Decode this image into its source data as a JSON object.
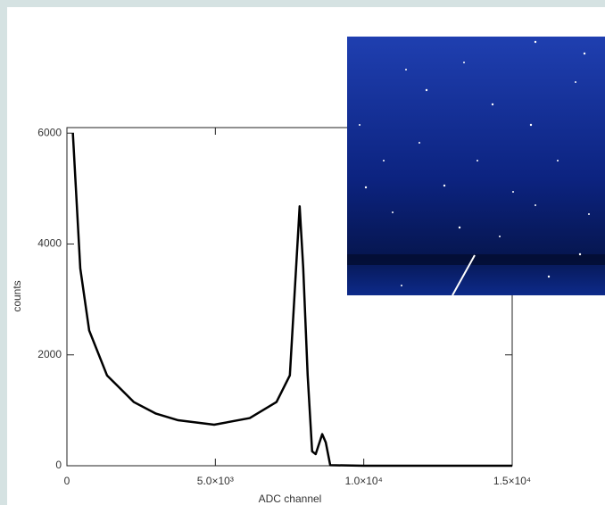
{
  "chart_data": {
    "type": "line",
    "x_label": "ADC channel",
    "y_label": "counts",
    "x": [
      200,
      450,
      750,
      1350,
      2250,
      3000,
      3750,
      4960,
      6160,
      7060,
      7510,
      7720,
      7840,
      7960,
      8110,
      8260,
      8380,
      8600,
      8720,
      8870,
      10000,
      12000,
      15000
    ],
    "values": [
      6000,
      3560,
      2440,
      1630,
      1150,
      940,
      820,
      740,
      860,
      1150,
      1630,
      3570,
      4680,
      3570,
      1630,
      260,
      210,
      570,
      420,
      10,
      0,
      0,
      0
    ],
    "color": "#000000",
    "xlim": [
      0,
      15000
    ],
    "ylim": [
      0,
      6100
    ],
    "xticks": [
      0,
      {
        "value": 5000,
        "label": "5.0×10³"
      },
      {
        "value": 10000,
        "label": "1.0×10⁴"
      },
      {
        "value": 15000,
        "label": "1.5×10⁴"
      }
    ],
    "yticks": [
      0,
      2000,
      4000,
      6000
    ]
  }
}
